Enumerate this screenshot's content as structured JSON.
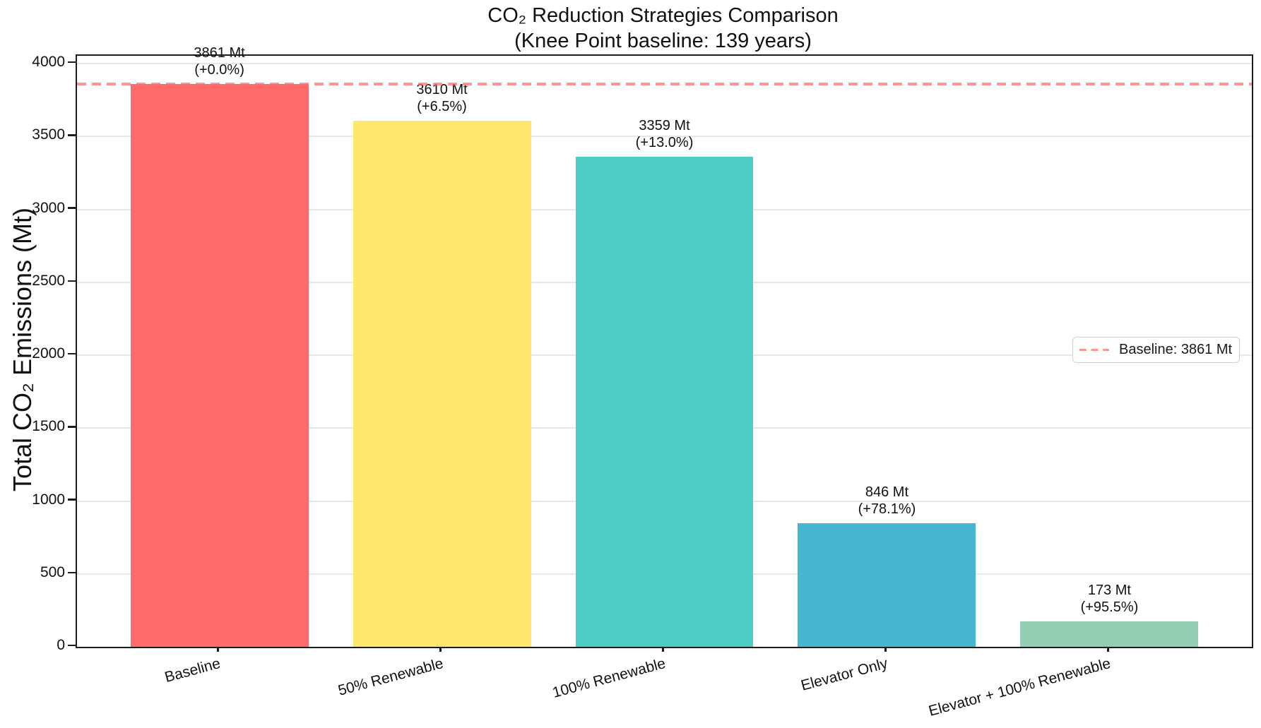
{
  "chart_data": {
    "type": "bar",
    "title": "CO₂ Reduction Strategies Comparison",
    "subtitle": "(Knee Point baseline: 139 years)",
    "ylabel": "Total CO₂ Emissions (Mt)",
    "categories": [
      "Baseline",
      "50% Renewable",
      "100% Renewable",
      "Elevator Only",
      "Elevator + 100% Renewable"
    ],
    "values": [
      3861,
      3610,
      3359,
      846,
      173
    ],
    "bar_labels": [
      [
        "3861 Mt",
        "(+0.0%)"
      ],
      [
        "3610 Mt",
        "(+6.5%)"
      ],
      [
        "3359 Mt",
        "(+13.0%)"
      ],
      [
        "846 Mt",
        "(+78.1%)"
      ],
      [
        "173 Mt",
        "(+95.5%)"
      ]
    ],
    "bar_colors": [
      "#FF6B6B",
      "#FFE66D",
      "#4ECDC4",
      "#45B7D1",
      "#96CEB4"
    ],
    "ylim": [
      0,
      4000
    ],
    "yticks": [
      0,
      500,
      1000,
      1500,
      2000,
      2500,
      3000,
      3500,
      4000
    ],
    "grid": true,
    "baseline_line": {
      "value": 3861,
      "style": "dashed",
      "color": "#FF6B6B"
    },
    "legend": {
      "position": "center-right",
      "entries": [
        {
          "label": "Baseline: 3861 Mt",
          "style": "dashed-line",
          "color": "#FF6B6B"
        }
      ]
    }
  }
}
